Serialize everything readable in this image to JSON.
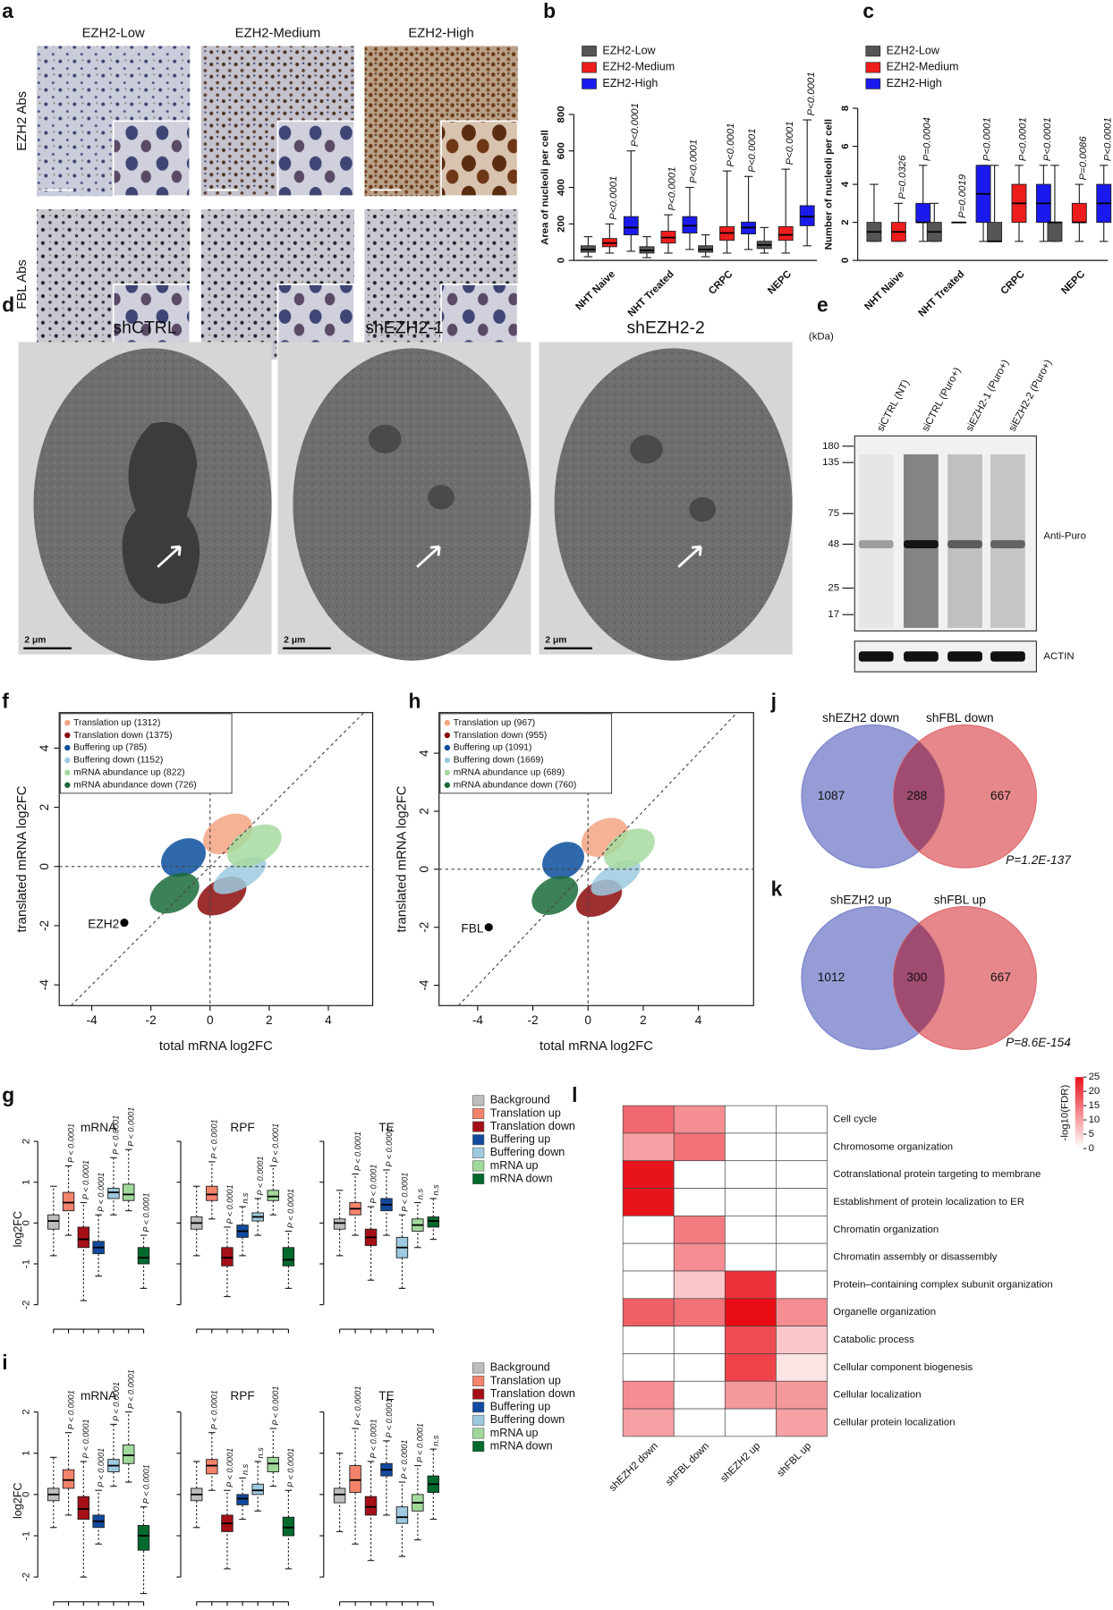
{
  "figures": {
    "a": {
      "label": "a",
      "columns": [
        "EZH2-Low",
        "EZH2-Medium",
        "EZH2-High"
      ],
      "rows": [
        "EZH2 Abs",
        "FBL Abs"
      ]
    },
    "d": {
      "label": "d",
      "columns": [
        "shCTRL",
        "shEZH2-1",
        "shEZH2-2"
      ],
      "scale_bar": "2 μm"
    },
    "e": {
      "label": "e",
      "unit": "(kDa)",
      "markers": [
        180,
        135,
        75,
        48,
        25,
        17
      ],
      "lanes": [
        "siCTRL (NT)",
        "siCTRL (Puro+)",
        "siEZH2-1 (Puro+)",
        "siEZH2-2 (Puro+)"
      ],
      "antibodies": [
        "Anti-Puro",
        "ACTIN"
      ]
    }
  },
  "chart_data": [
    {
      "type": "box",
      "label": "b",
      "ylabel": "Area of nucleoli per cell",
      "categories": [
        "NHT Naive",
        "NHT Treated",
        "CRPC",
        "NEPC"
      ],
      "series": [
        {
          "name": "EZH2-Low",
          "color": "#555555",
          "values": [
            [
              20,
              45,
              60,
              80,
              130
            ],
            [
              15,
              40,
              55,
              75,
              130
            ],
            [
              20,
              45,
              60,
              80,
              140
            ],
            [
              40,
              65,
              85,
              105,
              180
            ]
          ]
        },
        {
          "name": "EZH2-Medium",
          "color": "#ee1c1c",
          "values": [
            [
              40,
              75,
              95,
              120,
              200
            ],
            [
              40,
              95,
              125,
              160,
              250
            ],
            [
              40,
              110,
              150,
              185,
              490
            ],
            [
              40,
              110,
              140,
              185,
              500
            ]
          ]
        },
        {
          "name": "EZH2-High",
          "color": "#1a1aee",
          "values": [
            [
              50,
              140,
              180,
              240,
              600
            ],
            [
              60,
              150,
              190,
              240,
              400
            ],
            [
              60,
              145,
              180,
              210,
              460
            ],
            [
              80,
              190,
              240,
              300,
              770
            ]
          ]
        }
      ],
      "p_values": [
        [
          "P<0.0001",
          "P<0.0001"
        ],
        [
          "P<0.0001",
          "P<0.0001"
        ],
        [
          "P<0.0001",
          "P<0.0001"
        ],
        [
          "P<0.0001",
          "P<0.0001"
        ]
      ],
      "ylim": [
        0,
        800
      ],
      "yticks": [
        0,
        200,
        400,
        600,
        800
      ]
    },
    {
      "type": "box",
      "label": "c",
      "ylabel": "Number of nucleoli per cell",
      "categories": [
        "NHT Naive",
        "NHT Treated",
        "CRPC",
        "NEPC"
      ],
      "series": [
        {
          "name": "EZH2-Low",
          "color": "#555555",
          "values": [
            [
              1,
              1,
              1.5,
              2,
              4
            ],
            [
              1,
              1,
              1.5,
              2,
              3
            ],
            [
              1,
              1,
              1,
              2,
              5
            ],
            [
              1,
              1,
              2,
              2,
              5
            ]
          ]
        },
        {
          "name": "EZH2-Medium",
          "color": "#ee1c1c",
          "values": [
            [
              1,
              1,
              1.5,
              2,
              3
            ],
            [
              2,
              2,
              2,
              2,
              2
            ],
            [
              1,
              2,
              3,
              4,
              5
            ],
            [
              1,
              2,
              2,
              3,
              4
            ]
          ]
        },
        {
          "name": "EZH2-High",
          "color": "#1a1aee",
          "values": [
            [
              1,
              2,
              2,
              3,
              5
            ],
            [
              1,
              2,
              3.5,
              5,
              5
            ],
            [
              1,
              2,
              3,
              4,
              5
            ],
            [
              1,
              2,
              3,
              4,
              5
            ]
          ]
        }
      ],
      "p_values": [
        [
          "P=0.0326",
          "P=0.0004"
        ],
        [
          "P=0.0019",
          "P<0.0001"
        ],
        [
          "P<0.0001",
          "P<0.0001"
        ],
        [
          "P=0.0086",
          "P<0.0001"
        ]
      ],
      "ylim": [
        0,
        8
      ],
      "yticks": [
        0,
        2,
        4,
        6,
        8
      ]
    },
    {
      "type": "scatter",
      "label": "f",
      "xlabel": "total mRNA log2FC",
      "ylabel": "translated mRNA log2FC",
      "series": [
        {
          "name": "Translation up (1312)",
          "color": "#f4a582"
        },
        {
          "name": "Translation down (1375)",
          "color": "#8b0a0a"
        },
        {
          "name": "Buffering up (785)",
          "color": "#0b4f9c"
        },
        {
          "name": "Buffering down (1152)",
          "color": "#9ecae1"
        },
        {
          "name": "mRNA abundance up (822)",
          "color": "#a6dba0"
        },
        {
          "name": "mRNA abundance down (726)",
          "color": "#1b6b3a"
        }
      ],
      "highlight": {
        "label": "EZH2",
        "x": -2.9,
        "y": -1.9
      },
      "xlim": [
        -5.1,
        5.5
      ],
      "ylim": [
        -4.7,
        5.2
      ],
      "xticks": [
        -4,
        -2,
        0,
        2,
        4
      ],
      "yticks": [
        -4,
        -2,
        0,
        2,
        4
      ]
    },
    {
      "type": "scatter",
      "label": "h",
      "xlabel": "total mRNA log2FC",
      "ylabel": "translated mRNA log2FC",
      "series": [
        {
          "name": "Translation up (967)",
          "color": "#f4a582"
        },
        {
          "name": "Translation down (955)",
          "color": "#8b0a0a"
        },
        {
          "name": "Buffering up (1091)",
          "color": "#0b4f9c"
        },
        {
          "name": "Buffering down (1669)",
          "color": "#9ecae1"
        },
        {
          "name": "mRNA abundance up (689)",
          "color": "#a6dba0"
        },
        {
          "name": "mRNA abundance down (760)",
          "color": "#1b6b3a"
        }
      ],
      "highlight": {
        "label": "FBL",
        "x": -3.6,
        "y": -2.0
      },
      "xlim": [
        -5.4,
        6.0
      ],
      "ylim": [
        -4.7,
        5.4
      ],
      "xticks": [
        -4,
        -2,
        0,
        2,
        4
      ],
      "yticks": [
        -4,
        -2,
        0,
        2,
        4
      ]
    },
    {
      "type": "venn",
      "label": "j",
      "sets": [
        {
          "name": "shEZH2 down",
          "color": "#7b83cc"
        },
        {
          "name": "shFBL down",
          "color": "#e06a6e"
        }
      ],
      "values": [
        1087,
        288,
        667
      ],
      "p_label": "P=1.2E-137"
    },
    {
      "type": "venn",
      "label": "k",
      "sets": [
        {
          "name": "shEZH2 up",
          "color": "#7b83cc"
        },
        {
          "name": "shFBL up",
          "color": "#e06a6e"
        }
      ],
      "values": [
        1012,
        300,
        667
      ],
      "p_label": "P=8.6E-154"
    },
    {
      "type": "box_facets",
      "label": "g",
      "ylabel": "log2FC",
      "series": [
        {
          "name": "Background",
          "color": "#bdbdbd"
        },
        {
          "name": "Translation up",
          "color": "#f4836b"
        },
        {
          "name": "Translation down",
          "color": "#a50f15"
        },
        {
          "name": "Buffering up",
          "color": "#114a9e"
        },
        {
          "name": "Buffering down",
          "color": "#9ecae1"
        },
        {
          "name": "mRNA up",
          "color": "#a1d99b"
        },
        {
          "name": "mRNA down",
          "color": "#00692e"
        }
      ],
      "facets": [
        {
          "title": "mRNA",
          "values": [
            [
              -0.8,
              -0.15,
              0.05,
              0.2,
              0.9
            ],
            [
              -0.3,
              0.3,
              0.5,
              0.75,
              1.4
            ],
            [
              -1.9,
              -0.6,
              -0.4,
              -0.1,
              0.5
            ],
            [
              -1.3,
              -0.75,
              -0.6,
              -0.45,
              0.2
            ],
            [
              0.2,
              0.6,
              0.75,
              0.85,
              1.6
            ],
            [
              0.3,
              0.55,
              0.7,
              0.95,
              1.8
            ],
            [
              -1.6,
              -1.0,
              -0.85,
              -0.6,
              -0.3
            ]
          ],
          "p_labels": [
            "P < 0.0001",
            "P < 0.0001",
            "P < 0.0001",
            "P < 0.0001",
            "P < 0.0001",
            "P < 0.0001"
          ]
        },
        {
          "title": "RPF",
          "values": [
            [
              -0.8,
              -0.15,
              0,
              0.15,
              0.9
            ],
            [
              0.1,
              0.55,
              0.7,
              0.9,
              1.5
            ],
            [
              -1.8,
              -1.05,
              -0.85,
              -0.6,
              -0.1
            ],
            [
              -0.8,
              -0.35,
              -0.2,
              -0.05,
              0.4
            ],
            [
              -0.3,
              0.05,
              0.15,
              0.25,
              0.6
            ],
            [
              0.2,
              0.55,
              0.65,
              0.8,
              1.4
            ],
            [
              -1.6,
              -1.05,
              -0.9,
              -0.6,
              -0.2
            ]
          ],
          "p_labels": [
            "P < 0.0001",
            "P < 0.0001",
            "n.s",
            "P < 0.0001",
            "P < 0.0001",
            "P < 0.0001"
          ]
        },
        {
          "title": "TE",
          "values": [
            [
              -0.8,
              -0.15,
              0,
              0.1,
              0.8
            ],
            [
              -0.3,
              0.2,
              0.35,
              0.5,
              1.2
            ],
            [
              -1.4,
              -0.55,
              -0.35,
              -0.15,
              0.4
            ],
            [
              -0.3,
              0.3,
              0.45,
              0.6,
              1.3
            ],
            [
              -1.6,
              -0.85,
              -0.6,
              -0.35,
              0.2
            ],
            [
              -0.6,
              -0.2,
              -0.05,
              0.1,
              0.5
            ],
            [
              -0.4,
              -0.1,
              0.05,
              0.15,
              0.6
            ]
          ],
          "p_labels": [
            "P < 0.0001",
            "P < 0.0001",
            "P < 0.0001",
            "P < 0.0001",
            "n.s",
            "n.s"
          ]
        }
      ],
      "ylim": [
        -2.5,
        2.2
      ],
      "yticks": [
        -2,
        -1,
        0,
        1,
        2
      ]
    },
    {
      "type": "box_facets",
      "label": "i",
      "ylabel": "log2FC",
      "series": [
        {
          "name": "Background",
          "color": "#bdbdbd"
        },
        {
          "name": "Translation up",
          "color": "#f4836b"
        },
        {
          "name": "Translation down",
          "color": "#a50f15"
        },
        {
          "name": "Buffering up",
          "color": "#114a9e"
        },
        {
          "name": "Buffering down",
          "color": "#9ecae1"
        },
        {
          "name": "mRNA up",
          "color": "#a1d99b"
        },
        {
          "name": "mRNA down",
          "color": "#00692e"
        }
      ],
      "facets": [
        {
          "title": "mRNA",
          "values": [
            [
              -0.8,
              -0.15,
              0,
              0.15,
              0.9
            ],
            [
              -0.5,
              0.15,
              0.35,
              0.6,
              1.5
            ],
            [
              -2.0,
              -0.6,
              -0.35,
              -0.05,
              0.8
            ],
            [
              -1.2,
              -0.8,
              -0.65,
              -0.5,
              0.1
            ],
            [
              0.2,
              0.55,
              0.7,
              0.85,
              1.7
            ],
            [
              0.3,
              0.75,
              0.95,
              1.2,
              2.0
            ],
            [
              -2.4,
              -1.35,
              -1.0,
              -0.75,
              -0.3
            ]
          ],
          "p_labels": [
            "P < 0.0001",
            "P < 0.0001",
            "P < 0.0001",
            "P < 0.0001",
            "P < 0.0001",
            "P < 0.0001"
          ]
        },
        {
          "title": "RPF",
          "values": [
            [
              -0.8,
              -0.15,
              0,
              0.15,
              0.8
            ],
            [
              0.1,
              0.5,
              0.7,
              0.85,
              1.5
            ],
            [
              -1.8,
              -0.9,
              -0.7,
              -0.5,
              0.1
            ],
            [
              -0.6,
              -0.25,
              -0.1,
              0,
              0.4
            ],
            [
              -0.4,
              0,
              0.1,
              0.25,
              0.8
            ],
            [
              0.2,
              0.55,
              0.75,
              0.9,
              1.6
            ],
            [
              -1.8,
              -1.0,
              -0.8,
              -0.55,
              0.1
            ]
          ],
          "p_labels": [
            "P < 0.0001",
            "P < 0.0001",
            "n.s",
            "n.s",
            "P < 0.0001",
            "P < 0.0001"
          ]
        },
        {
          "title": "TE",
          "values": [
            [
              -0.9,
              -0.2,
              0,
              0.15,
              1.0
            ],
            [
              -1.2,
              0.05,
              0.35,
              0.7,
              1.6
            ],
            [
              -1.6,
              -0.5,
              -0.3,
              -0.05,
              0.8
            ],
            [
              -0.5,
              0.45,
              0.6,
              0.75,
              1.3
            ],
            [
              -1.5,
              -0.7,
              -0.55,
              -0.3,
              0.3
            ],
            [
              -1.1,
              -0.4,
              -0.2,
              0,
              0.7
            ],
            [
              -0.6,
              0.05,
              0.25,
              0.45,
              1.1
            ]
          ],
          "p_labels": [
            "P < 0.0001",
            "P < 0.0001",
            "P < 0.0001",
            "P < 0.0001",
            "P < 0.0001",
            "n.s"
          ]
        }
      ],
      "ylim": [
        -2.5,
        2.2
      ],
      "yticks": [
        -2,
        -1,
        0,
        1,
        2
      ]
    },
    {
      "type": "heatmap",
      "label": "l",
      "rows": [
        "Cell cycle",
        "Chromosome organization",
        "Cotranslational protein targeting to membrane",
        "Establishment of protein localization to ER",
        "Chromatin organization",
        "Chromatin assembly or disassembly",
        "Protein–containing complex subunit organization",
        "Organelle organization",
        "Catabolic process",
        "Cellular component biogenesis",
        "Cellular localization",
        "Cellular protein localization"
      ],
      "columns": [
        "shEZH2 down",
        "shFBL down",
        "shEZH2 up",
        "shFBL up"
      ],
      "values": [
        [
          16,
          12,
          0,
          0
        ],
        [
          10,
          15,
          0,
          0
        ],
        [
          25,
          0,
          0,
          0
        ],
        [
          25,
          0,
          0,
          0
        ],
        [
          0,
          14,
          0,
          0
        ],
        [
          0,
          12,
          0,
          0
        ],
        [
          0,
          6,
          22,
          0
        ],
        [
          17,
          15,
          26,
          12
        ],
        [
          0,
          0,
          19,
          6
        ],
        [
          0,
          0,
          20,
          3
        ],
        [
          12,
          0,
          11,
          11
        ],
        [
          10,
          0,
          0,
          10
        ]
      ],
      "color": "#e8141c",
      "colorbar_label": "-log10(FDR)",
      "clim": [
        0,
        25
      ],
      "cticks": [
        0,
        5,
        10,
        15,
        20,
        25
      ]
    }
  ]
}
